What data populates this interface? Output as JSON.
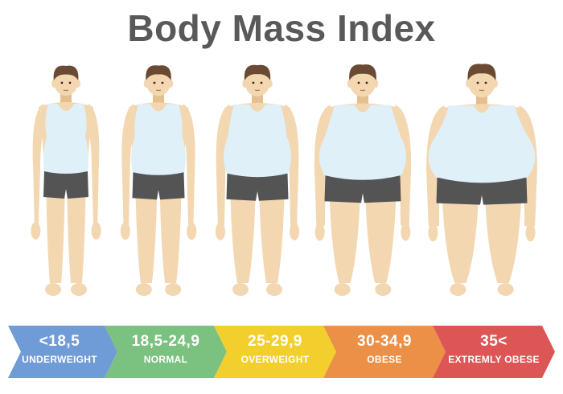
{
  "title": "Body Mass Index",
  "colors": {
    "skin": "#f3d7b1",
    "skin_shade": "#e4c08f",
    "hair": "#6b4a33",
    "shirt": "#dff0f8",
    "shorts": "#545454"
  },
  "categories": [
    {
      "range": "<18,5",
      "label": "UNDERWEIGHT",
      "color": "#6f9bd6",
      "icon": "underweight-figure"
    },
    {
      "range": "18,5-24,9",
      "label": "NORMAL",
      "color": "#7bc17f",
      "icon": "normal-figure"
    },
    {
      "range": "25-29,9",
      "label": "OVERWEIGHT",
      "color": "#f3cf2d",
      "icon": "overweight-figure"
    },
    {
      "range": "30-34,9",
      "label": "OBESE",
      "color": "#eb9046",
      "icon": "obese-figure"
    },
    {
      "range": "35<",
      "label": "EXTREMLY OBESE",
      "color": "#dd5656",
      "icon": "extremely-obese-figure"
    }
  ]
}
